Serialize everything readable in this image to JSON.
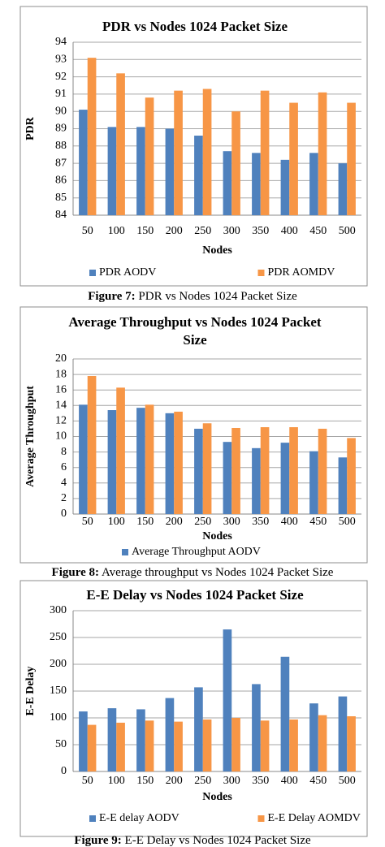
{
  "chart_data": [
    {
      "type": "bar",
      "title": "PDR vs Nodes 1024 Packet Size",
      "xlabel": "Nodes",
      "ylabel": "PDR",
      "categories": [
        "50",
        "100",
        "150",
        "200",
        "250",
        "300",
        "350",
        "400",
        "450",
        "500"
      ],
      "series": [
        {
          "name": "PDR AODV",
          "color": "#4f81bd",
          "values": [
            90.1,
            89.1,
            89.1,
            89.0,
            88.6,
            87.7,
            87.6,
            87.2,
            87.6,
            87.0
          ]
        },
        {
          "name": "PDR AOMDV",
          "color": "#f79646",
          "values": [
            93.1,
            92.2,
            90.8,
            91.2,
            91.3,
            90.0,
            91.2,
            90.5,
            91.1,
            90.5
          ]
        }
      ],
      "ylim": [
        84,
        94
      ],
      "yticks": [
        84,
        85,
        86,
        87,
        88,
        89,
        90,
        91,
        92,
        93,
        94
      ],
      "grid": true
    },
    {
      "type": "bar",
      "title": "Average Throughput vs Nodes 1024 Packet Size",
      "xlabel": "Nodes",
      "ylabel": "Average Throughput",
      "categories": [
        "50",
        "100",
        "150",
        "200",
        "250",
        "300",
        "350",
        "400",
        "450",
        "500"
      ],
      "series": [
        {
          "name": "Average Throughput AODV",
          "color": "#4f81bd",
          "values": [
            14.1,
            13.4,
            13.7,
            13.0,
            11.0,
            9.3,
            8.5,
            9.2,
            8.1,
            7.3
          ]
        },
        {
          "color": "#f79646",
          "values": [
            17.8,
            16.3,
            14.1,
            13.2,
            11.7,
            11.1,
            11.2,
            11.2,
            11.0,
            9.8
          ]
        }
      ],
      "ylim": [
        0,
        20
      ],
      "yticks": [
        0,
        2,
        4,
        6,
        8,
        10,
        12,
        14,
        16,
        18,
        20
      ],
      "grid": true
    },
    {
      "type": "bar",
      "title": "E-E Delay vs Nodes 1024 Packet Size",
      "xlabel": "Nodes",
      "ylabel": "E-E Delay",
      "categories": [
        "50",
        "100",
        "150",
        "200",
        "250",
        "300",
        "350",
        "400",
        "450",
        "500"
      ],
      "series": [
        {
          "name": "E-E delay AODV",
          "color": "#4f81bd",
          "values": [
            112,
            118,
            116,
            137,
            157,
            265,
            163,
            214,
            127,
            140
          ]
        },
        {
          "name": "E-E Delay AOMDV",
          "color": "#f79646",
          "values": [
            87,
            91,
            95,
            93,
            97,
            100,
            95,
            97,
            105,
            103
          ]
        }
      ],
      "ylim": [
        0,
        300
      ],
      "yticks": [
        0,
        50,
        100,
        150,
        200,
        250,
        300
      ],
      "grid": true
    }
  ],
  "captions": [
    {
      "label": "Figure 7:",
      "text": " PDR vs Nodes 1024 Packet Size"
    },
    {
      "label": "Figure 8:",
      "text": " Average throughput vs Nodes 1024 Packet Size"
    },
    {
      "label": "Figure 9:",
      "text": " E-E Delay vs Nodes 1024 Packet Size"
    }
  ]
}
